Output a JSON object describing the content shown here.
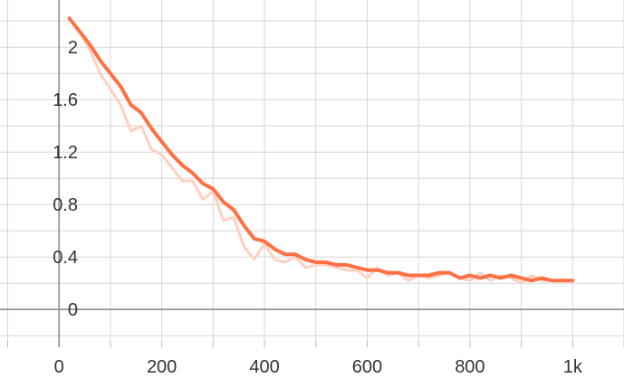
{
  "chart_data": {
    "type": "line",
    "title": "",
    "xlabel": "",
    "ylabel": "",
    "xlim": [
      -115,
      1100
    ],
    "ylim": [
      -0.24,
      2.36
    ],
    "grid": true,
    "legend": "none",
    "x_ticks": [
      {
        "value": 0,
        "label": "0"
      },
      {
        "value": 200,
        "label": "200"
      },
      {
        "value": 400,
        "label": "400"
      },
      {
        "value": 600,
        "label": "600"
      },
      {
        "value": 800,
        "label": "800"
      },
      {
        "value": 1000,
        "label": "1k"
      }
    ],
    "y_ticks": [
      {
        "value": 0,
        "label": "0"
      },
      {
        "value": 0.4,
        "label": "0.4"
      },
      {
        "value": 0.8,
        "label": "0.8"
      },
      {
        "value": 1.2,
        "label": "1.2"
      },
      {
        "value": 1.6,
        "label": "1.6"
      },
      {
        "value": 2,
        "label": "2"
      }
    ],
    "x_grid_step": 100,
    "y_grid_step": 0.2,
    "series": [
      {
        "role": "raw",
        "color": "#ffd0c0",
        "x": [
          40,
          60,
          80,
          100,
          120,
          140,
          160,
          180,
          200,
          220,
          240,
          260,
          280,
          300,
          320,
          340,
          360,
          380,
          400,
          420,
          440,
          460,
          480,
          500,
          520,
          540,
          560,
          580,
          600,
          620,
          640,
          660,
          680,
          700,
          720,
          740,
          760,
          780,
          800,
          820,
          840,
          860,
          880,
          900,
          920,
          940,
          960,
          980,
          1000
        ],
        "y": [
          2.12,
          1.98,
          1.8,
          1.68,
          1.56,
          1.36,
          1.4,
          1.22,
          1.18,
          1.08,
          0.98,
          0.98,
          0.84,
          0.9,
          0.68,
          0.7,
          0.48,
          0.38,
          0.5,
          0.38,
          0.36,
          0.4,
          0.32,
          0.34,
          0.34,
          0.32,
          0.3,
          0.3,
          0.24,
          0.32,
          0.26,
          0.28,
          0.22,
          0.26,
          0.24,
          0.26,
          0.28,
          0.24,
          0.22,
          0.28,
          0.22,
          0.26,
          0.24,
          0.2,
          0.26,
          0.22,
          0.22,
          0.22,
          0.22
        ]
      },
      {
        "role": "smoothed",
        "color": "#ff7043",
        "x": [
          20,
          40,
          60,
          80,
          100,
          120,
          140,
          160,
          180,
          200,
          220,
          240,
          260,
          280,
          300,
          320,
          340,
          360,
          380,
          400,
          420,
          440,
          460,
          480,
          500,
          520,
          540,
          560,
          580,
          600,
          620,
          640,
          660,
          680,
          700,
          720,
          740,
          760,
          780,
          800,
          820,
          840,
          860,
          880,
          900,
          920,
          940,
          960,
          980,
          1000
        ],
        "y": [
          2.22,
          2.12,
          2.02,
          1.9,
          1.8,
          1.7,
          1.56,
          1.5,
          1.38,
          1.28,
          1.18,
          1.1,
          1.04,
          0.96,
          0.92,
          0.82,
          0.76,
          0.64,
          0.54,
          0.52,
          0.46,
          0.42,
          0.42,
          0.38,
          0.36,
          0.36,
          0.34,
          0.34,
          0.32,
          0.3,
          0.3,
          0.28,
          0.28,
          0.26,
          0.26,
          0.26,
          0.28,
          0.28,
          0.24,
          0.26,
          0.24,
          0.26,
          0.24,
          0.26,
          0.24,
          0.22,
          0.24,
          0.22,
          0.22,
          0.22
        ]
      }
    ]
  }
}
